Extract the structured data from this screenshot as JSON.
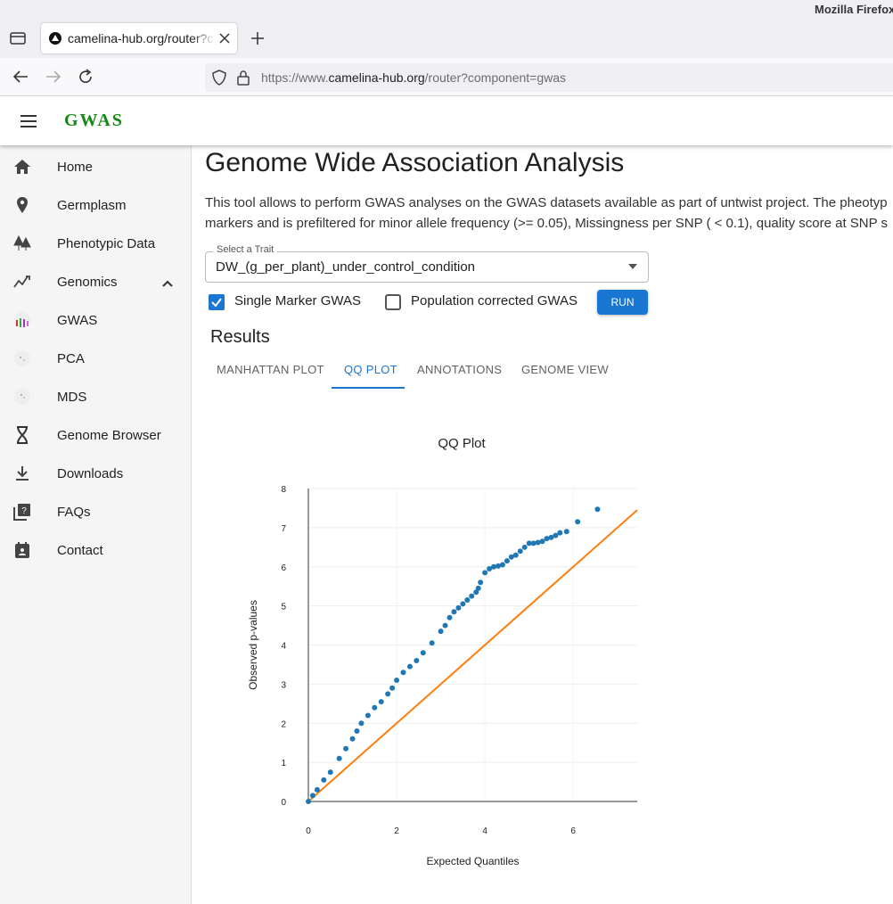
{
  "browser": {
    "window_title": "Mozilla Firefox",
    "tab_title": "camelina-hub.org/router?co",
    "url_prefix": "https://www.",
    "url_domain": "camelina-hub.org",
    "url_path": "/router?component=gwas"
  },
  "app": {
    "title": "GWAS"
  },
  "sidebar": {
    "items": [
      "Home",
      "Germplasm",
      "Phenotypic Data",
      "Genomics",
      "GWAS",
      "PCA",
      "MDS",
      "Genome Browser",
      "Downloads",
      "FAQs",
      "Contact"
    ]
  },
  "content": {
    "heading": "Genome Wide Association Analysis",
    "description": [
      "This tool allows to perform GWAS analyses on the GWAS datasets available as part of untwist project. The pheotyp",
      "markers and is prefiltered for minor allele frequency (>= 0.05), Missingness per SNP ( < 0.1), quality score at SNP s"
    ],
    "select_label": "Select a Trait",
    "select_value": "DW_(g_per_plant)_under_control_condition",
    "checkboxes": [
      {
        "label": "Single Marker GWAS",
        "checked": true
      },
      {
        "label": "Population corrected GWAS",
        "checked": false
      }
    ],
    "run_button": "RUN",
    "results_heading": "Results",
    "tabs": [
      "MANHATTAN PLOT",
      "QQ PLOT",
      "ANNOTATIONS",
      "GENOME VIEW"
    ],
    "active_tab": 1
  },
  "chart_data": {
    "type": "scatter",
    "title": "QQ Plot",
    "x_label": "Expected Quantiles",
    "y_label": "Observed p-values",
    "x": [
      0,
      0.1,
      0.2,
      0.35,
      0.5,
      0.7,
      0.85,
      1,
      1.1,
      1.2,
      1.35,
      1.5,
      1.65,
      1.8,
      1.9,
      2,
      2.15,
      2.3,
      2.45,
      2.6,
      2.8,
      3,
      3.1,
      3.2,
      3.3,
      3.4,
      3.5,
      3.6,
      3.7,
      3.8,
      3.85,
      3.9,
      4,
      4.1,
      4.2,
      4.3,
      4.4,
      4.5,
      4.6,
      4.7,
      4.8,
      4.9,
      5,
      5.1,
      5.2,
      5.3,
      5.4,
      5.5,
      5.6,
      5.7,
      5.85,
      6.1,
      6.55
    ],
    "values": [
      0,
      0.15,
      0.3,
      0.55,
      0.75,
      1.1,
      1.35,
      1.6,
      1.8,
      2.0,
      2.2,
      2.4,
      2.55,
      2.75,
      2.9,
      3.1,
      3.3,
      3.45,
      3.6,
      3.8,
      4.05,
      4.35,
      4.5,
      4.7,
      4.85,
      4.95,
      5.05,
      5.15,
      5.25,
      5.35,
      5.45,
      5.6,
      5.85,
      5.95,
      6.0,
      6.02,
      6.05,
      6.15,
      6.25,
      6.3,
      6.4,
      6.5,
      6.6,
      6.6,
      6.62,
      6.65,
      6.72,
      6.75,
      6.8,
      6.87,
      6.9,
      7.15,
      7.47
    ],
    "color": "#1f77b4",
    "reference_line": {
      "x": [
        0,
        7.45
      ],
      "values": [
        0,
        7.45
      ],
      "color": "#ff7f0e"
    },
    "xlim": [
      0,
      7.45
    ],
    "ylim": [
      0,
      8
    ],
    "xticks": [
      0,
      2,
      4,
      6
    ],
    "yticks": [
      0,
      1,
      2,
      3,
      4,
      5,
      6,
      7,
      8
    ],
    "grid": true
  }
}
